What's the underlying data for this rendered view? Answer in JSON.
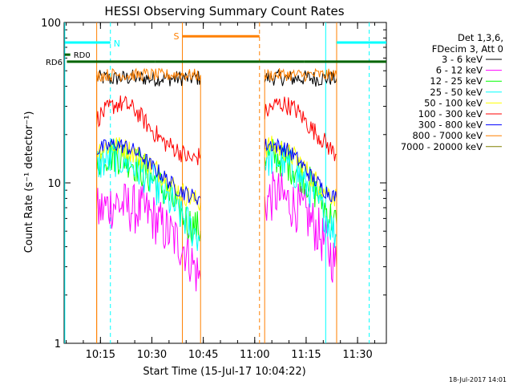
{
  "chart_data": {
    "type": "line",
    "title": "HESSI Observing Summary Count Rates",
    "xlabel": "Start Time (15-Jul-17 10:04:22)",
    "ylabel": "Count Rate (s⁻¹ detector⁻¹)",
    "x_units": "minutes since 10:04:22",
    "xlim": [
      0,
      94
    ],
    "ylim": [
      1,
      100
    ],
    "yscale": "log",
    "x_ticks": [
      {
        "label": "10:15",
        "value": 10.6
      },
      {
        "label": "10:30",
        "value": 25.6
      },
      {
        "label": "10:45",
        "value": 40.6
      },
      {
        "label": "11:00",
        "value": 55.6
      },
      {
        "label": "11:15",
        "value": 70.6
      },
      {
        "label": "11:30",
        "value": 85.6
      }
    ],
    "y_ticks": [
      {
        "label": "1",
        "value": 1
      },
      {
        "label": "10",
        "value": 10
      },
      {
        "label": "100",
        "value": 100
      }
    ],
    "legend_header": [
      "Det 1,3,6,",
      "FDecim 3, Att 0"
    ],
    "legend_position": "top-right",
    "footer_date": "18-Jul-2017 14:01",
    "series": [
      {
        "name": "3 - 6 keV",
        "color": "#000000",
        "segments": [
          [
            [
              9.5,
              45
            ],
            [
              12,
              45
            ],
            [
              14,
              44.5
            ],
            [
              16,
              45
            ],
            [
              18,
              45
            ],
            [
              20,
              45.5
            ],
            [
              22,
              45
            ],
            [
              24,
              45
            ],
            [
              26,
              44.5
            ],
            [
              28,
              45
            ],
            [
              30,
              45
            ],
            [
              32,
              44.5
            ],
            [
              34,
              45
            ],
            [
              36,
              45
            ],
            [
              38,
              45
            ],
            [
              39.8,
              45
            ]
          ],
          [
            [
              58.5,
              45
            ],
            [
              60,
              45
            ],
            [
              62,
              45.5
            ],
            [
              64,
              45
            ],
            [
              66,
              44.5
            ],
            [
              68,
              45
            ],
            [
              70,
              45
            ],
            [
              72,
              45
            ],
            [
              74,
              44.5
            ],
            [
              76,
              45
            ],
            [
              78,
              45
            ],
            [
              79.5,
              45
            ]
          ]
        ]
      },
      {
        "name": "6 - 12 keV",
        "color": "#ff00ff",
        "segments": [
          [
            [
              9.5,
              6.5
            ],
            [
              11,
              6.8
            ],
            [
              13,
              7.2
            ],
            [
              15,
              7.5
            ],
            [
              17,
              7.2
            ],
            [
              19,
              7.0
            ],
            [
              21,
              6.8
            ],
            [
              23,
              6.8
            ],
            [
              25,
              6.3
            ],
            [
              27,
              5.8
            ],
            [
              29,
              5.2
            ],
            [
              31,
              4.8
            ],
            [
              33,
              4.3
            ],
            [
              35,
              4.0
            ],
            [
              37,
              3.3
            ],
            [
              38.5,
              2.8
            ],
            [
              39.8,
              2.5
            ]
          ],
          [
            [
              58.5,
              7.5
            ],
            [
              60,
              8.0
            ],
            [
              62,
              8.5
            ],
            [
              64,
              8.0
            ],
            [
              66,
              7.5
            ],
            [
              68,
              7.0
            ],
            [
              70,
              6.5
            ],
            [
              72,
              5.8
            ],
            [
              74,
              5.0
            ],
            [
              76,
              4.2
            ],
            [
              78,
              3.5
            ],
            [
              79.5,
              3.0
            ]
          ]
        ]
      },
      {
        "name": "12 - 25 keV",
        "color": "#00ff00",
        "segments": [
          [
            [
              9.5,
              14
            ],
            [
              11,
              14.5
            ],
            [
              13,
              15
            ],
            [
              15,
              15
            ],
            [
              17,
              14.5
            ],
            [
              19,
              14
            ],
            [
              21,
              13
            ],
            [
              23,
              12
            ],
            [
              25,
              11
            ],
            [
              27,
              10
            ],
            [
              29,
              9
            ],
            [
              31,
              8
            ],
            [
              33,
              7
            ],
            [
              35,
              6
            ],
            [
              37,
              5.5
            ],
            [
              39.8,
              5
            ]
          ],
          [
            [
              58.5,
              15
            ],
            [
              60,
              15
            ],
            [
              62,
              14.5
            ],
            [
              64,
              14
            ],
            [
              66,
              13
            ],
            [
              68,
              12
            ],
            [
              70,
              11
            ],
            [
              72,
              9.5
            ],
            [
              74,
              8.5
            ],
            [
              76,
              7
            ],
            [
              78,
              6
            ],
            [
              79.5,
              5.5
            ]
          ]
        ]
      },
      {
        "name": "25 - 50 keV",
        "color": "#00ffff",
        "segments": [
          [
            [
              9.5,
              13
            ],
            [
              11,
              13.5
            ],
            [
              13,
              14
            ],
            [
              15,
              14.2
            ],
            [
              17,
              14
            ],
            [
              19,
              13.5
            ],
            [
              21,
              12.5
            ],
            [
              23,
              11.5
            ],
            [
              25,
              10.5
            ],
            [
              27,
              9.5
            ],
            [
              29,
              8.5
            ],
            [
              31,
              7.5
            ],
            [
              33,
              6.8
            ],
            [
              35,
              6
            ],
            [
              37,
              5.2
            ],
            [
              39.8,
              4.5
            ]
          ],
          [
            [
              58.5,
              14
            ],
            [
              60,
              14.2
            ],
            [
              62,
              14
            ],
            [
              64,
              13.5
            ],
            [
              66,
              12.5
            ],
            [
              68,
              11.5
            ],
            [
              70,
              10
            ],
            [
              72,
              9
            ],
            [
              74,
              7.5
            ],
            [
              76,
              6.5
            ],
            [
              78,
              5.3
            ],
            [
              79.5,
              4.6
            ]
          ]
        ]
      },
      {
        "name": "50 - 100 keV",
        "color": "#ffff00",
        "segments": [
          [
            [
              9.5,
              16
            ],
            [
              11,
              16.5
            ],
            [
              13,
              17
            ],
            [
              15,
              17
            ],
            [
              17,
              16.5
            ],
            [
              19,
              16
            ],
            [
              21,
              15
            ],
            [
              23,
              14
            ],
            [
              25,
              13
            ],
            [
              27,
              12
            ],
            [
              29,
              11
            ],
            [
              31,
              10
            ],
            [
              33,
              9
            ],
            [
              35,
              8.5
            ],
            [
              37,
              8
            ],
            [
              39.8,
              7.5
            ]
          ],
          [
            [
              58.5,
              16.5
            ],
            [
              60,
              17
            ],
            [
              62,
              16.5
            ],
            [
              64,
              16
            ],
            [
              66,
              15
            ],
            [
              68,
              14
            ],
            [
              70,
              12.5
            ],
            [
              72,
              11
            ],
            [
              74,
              10
            ],
            [
              76,
              9
            ],
            [
              78,
              8.5
            ],
            [
              79.5,
              8
            ]
          ]
        ]
      },
      {
        "name": "100 - 300 keV",
        "color": "#ff0000",
        "segments": [
          [
            [
              9.5,
              25
            ],
            [
              11,
              27
            ],
            [
              13,
              29
            ],
            [
              15,
              31
            ],
            [
              17,
              31
            ],
            [
              19,
              30
            ],
            [
              21,
              28
            ],
            [
              23,
              25
            ],
            [
              25,
              22
            ],
            [
              27,
              20
            ],
            [
              29,
              18
            ],
            [
              31,
              17
            ],
            [
              33,
              16
            ],
            [
              35,
              15
            ],
            [
              37,
              14
            ],
            [
              39,
              14.5
            ],
            [
              39.8,
              15
            ]
          ],
          [
            [
              58.5,
              27
            ],
            [
              60,
              29
            ],
            [
              62,
              31
            ],
            [
              64,
              31
            ],
            [
              66,
              30
            ],
            [
              68,
              28
            ],
            [
              70,
              25
            ],
            [
              72,
              22
            ],
            [
              74,
              20
            ],
            [
              76,
              18
            ],
            [
              78,
              16
            ],
            [
              79.5,
              15
            ]
          ]
        ]
      },
      {
        "name": "300 - 800 keV",
        "color": "#0000ff",
        "segments": [
          [
            [
              9.5,
              16
            ],
            [
              11,
              16.5
            ],
            [
              13,
              17
            ],
            [
              15,
              17.5
            ],
            [
              17,
              17
            ],
            [
              19,
              16.5
            ],
            [
              21,
              15.5
            ],
            [
              23,
              14.5
            ],
            [
              25,
              13
            ],
            [
              27,
              12
            ],
            [
              29,
              11
            ],
            [
              31,
              10
            ],
            [
              33,
              9.2
            ],
            [
              35,
              8.7
            ],
            [
              37,
              8.3
            ],
            [
              39.8,
              8
            ]
          ],
          [
            [
              58.5,
              17
            ],
            [
              60,
              17.5
            ],
            [
              62,
              17
            ],
            [
              64,
              16.5
            ],
            [
              66,
              15.5
            ],
            [
              68,
              14
            ],
            [
              70,
              12.5
            ],
            [
              72,
              11
            ],
            [
              74,
              10
            ],
            [
              76,
              9
            ],
            [
              78,
              8.5
            ],
            [
              79.5,
              8
            ]
          ]
        ]
      },
      {
        "name": "800 - 7000 keV",
        "color": "#ff8000",
        "segments": [
          [
            [
              9.5,
              47
            ],
            [
              12,
              47
            ],
            [
              15,
              47.5
            ],
            [
              18,
              47
            ],
            [
              21,
              47
            ],
            [
              24,
              47.5
            ],
            [
              27,
              47
            ],
            [
              30,
              47
            ],
            [
              33,
              47.5
            ],
            [
              36,
              47
            ],
            [
              39.8,
              47
            ]
          ],
          [
            [
              58.5,
              47
            ],
            [
              61,
              47
            ],
            [
              64,
              47.5
            ],
            [
              67,
              47
            ],
            [
              70,
              47
            ],
            [
              73,
              47.5
            ],
            [
              76,
              47
            ],
            [
              79.5,
              47
            ]
          ]
        ]
      },
      {
        "name": "7000 - 20000 keV",
        "color": "#808000",
        "segments": []
      }
    ],
    "annotations": {
      "bars": [
        {
          "label": "N",
          "color": "#00ffff",
          "ranges": [
            [
              0.2,
              13.5
            ],
            [
              79.5,
              94
            ]
          ],
          "y": 75
        },
        {
          "label": "RD0",
          "color": "#006400",
          "ranges": [
            [
              0.2,
              1.8
            ]
          ],
          "y": 63
        },
        {
          "label": "RD6",
          "color": "#006400",
          "ranges": [
            [
              0.8,
              26.5
            ],
            [
              26.5,
              57
            ],
            [
              57,
              70
            ],
            [
              70,
              94
            ]
          ],
          "y": 57
        },
        {
          "label": "S",
          "color": "#ff8000",
          "ranges": [
            [
              34.5,
              57
            ]
          ],
          "y": 82
        }
      ],
      "vlines": [
        {
          "x": 0.2,
          "color": "#00ffff",
          "style": "solid"
        },
        {
          "x": 9.5,
          "color": "#ff8000",
          "style": "solid"
        },
        {
          "x": 13.5,
          "color": "#00ffff",
          "style": "dashed"
        },
        {
          "x": 34.5,
          "color": "#ff8000",
          "style": "solid"
        },
        {
          "x": 57,
          "color": "#ff8000",
          "style": "dashed"
        },
        {
          "x": 76.3,
          "color": "#00ffff",
          "style": "solid"
        },
        {
          "x": 79.5,
          "color": "#ff8000",
          "style": "solid"
        },
        {
          "x": 89,
          "color": "#00ffff",
          "style": "dashed"
        }
      ]
    }
  }
}
